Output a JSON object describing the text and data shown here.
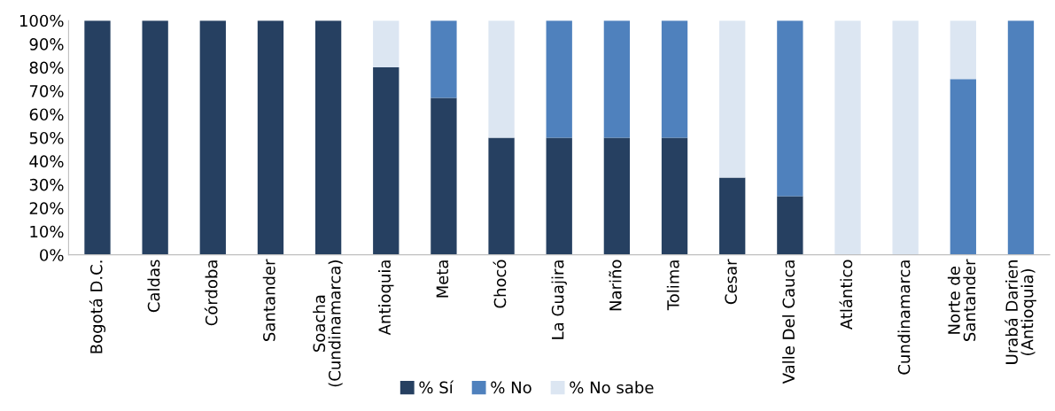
{
  "chart_data": {
    "type": "bar",
    "stacked": true,
    "categories": [
      "Bogotá D.C.",
      "Caldas",
      "Córdoba",
      "Santander",
      "Soacha\n(Cundinamarca)",
      "Antioquia",
      "Meta",
      "Chocó",
      "La Guajira",
      "Nariño",
      "Tolima",
      "Cesar",
      "Valle Del Cauca",
      "Atlántico",
      "Cundinamarca",
      "Norte de\nSantander",
      "Urabá Darien\n(Antioquia)"
    ],
    "series": [
      {
        "name": "% Sí",
        "color": "#264061",
        "values": [
          100,
          100,
          100,
          100,
          100,
          80,
          67,
          50,
          50,
          50,
          50,
          33,
          25,
          0,
          0,
          0,
          0
        ]
      },
      {
        "name": "% No",
        "color": "#4f81bd",
        "values": [
          0,
          0,
          0,
          0,
          0,
          0,
          33,
          0,
          50,
          50,
          50,
          0,
          75,
          0,
          0,
          75,
          100
        ]
      },
      {
        "name": "% No sabe",
        "color": "#dce6f2",
        "values": [
          0,
          0,
          0,
          0,
          0,
          20,
          0,
          50,
          0,
          0,
          0,
          67,
          0,
          100,
          100,
          25,
          0
        ]
      }
    ],
    "ylim": [
      0,
      100
    ],
    "yticks": [
      {
        "value": 0,
        "label": "0%"
      },
      {
        "value": 10,
        "label": "10%"
      },
      {
        "value": 20,
        "label": "20%"
      },
      {
        "value": 30,
        "label": "30%"
      },
      {
        "value": 40,
        "label": "40%"
      },
      {
        "value": 50,
        "label": "50%"
      },
      {
        "value": 60,
        "label": "60%"
      },
      {
        "value": 70,
        "label": "70%"
      },
      {
        "value": 80,
        "label": "80%"
      },
      {
        "value": 90,
        "label": "90%"
      },
      {
        "value": 100,
        "label": "100%"
      }
    ],
    "grid": false,
    "legend": "bottom"
  }
}
